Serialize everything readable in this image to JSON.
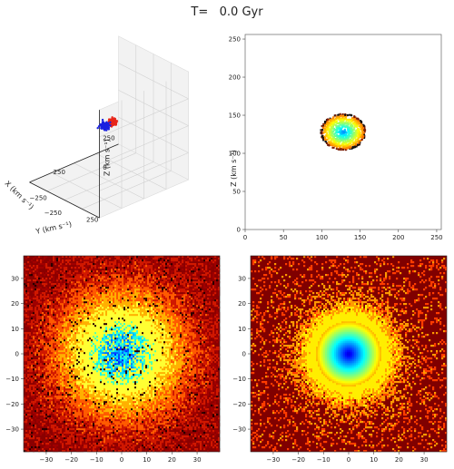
{
  "title": "T=   0.0 Gyr",
  "chart_data": [
    {
      "type": "scatter",
      "panel": "3d",
      "projection": "3d",
      "xlabel": "X (km s$^{-1}$)",
      "ylabel": "Y (km s$^{-1}$)",
      "zlabel": "Z (km s$^{-1}$)",
      "xlim": [
        -300,
        300
      ],
      "ylim": [
        -300,
        300
      ],
      "zlim": [
        -300,
        300
      ],
      "x_ticks": [
        "−250",
        "250"
      ],
      "y_ticks": [
        "−250",
        "250"
      ],
      "z_ticks": [
        "0",
        "250"
      ],
      "series": [
        {
          "color": "#e8261a",
          "center": [
            -50,
            -30,
            0
          ]
        },
        {
          "color": "#1a21e0",
          "center": [
            60,
            40,
            40
          ]
        }
      ],
      "grid": true
    },
    {
      "type": "scatter",
      "panel": "xz",
      "ylabel": "Z (km s$^{-1}$)",
      "xlim": [
        0,
        256
      ],
      "ylim": [
        0,
        256
      ],
      "x_ticks": [
        "0",
        "50",
        "100",
        "150",
        "200",
        "250"
      ],
      "y_ticks": [
        "0",
        "50",
        "100",
        "150",
        "200",
        "250"
      ],
      "center": [
        128,
        128
      ],
      "radius": 28,
      "colormap": "jet",
      "grid": false
    },
    {
      "type": "heatmap",
      "panel": "density-1",
      "xlim": [
        -39,
        39
      ],
      "ylim": [
        -39,
        39
      ],
      "x_ticks": [
        "−30",
        "−20",
        "−10",
        "0",
        "10",
        "20",
        "30"
      ],
      "y_ticks": [
        "30",
        "20",
        "10",
        "0",
        "−10",
        "−20",
        "−30"
      ],
      "colormap": "hot-jet",
      "center": [
        0,
        0
      ],
      "grid": false
    },
    {
      "type": "heatmap",
      "panel": "density-2",
      "xlim": [
        -39,
        39
      ],
      "ylim": [
        -39,
        39
      ],
      "x_ticks": [
        "−30",
        "−20",
        "−10",
        "0",
        "10",
        "20",
        "30"
      ],
      "y_ticks": [
        "30",
        "20",
        "10",
        "0",
        "−10",
        "−20",
        "−30"
      ],
      "colormap": "jet",
      "center": [
        0,
        0
      ],
      "background": "#800000",
      "grid": false
    }
  ]
}
